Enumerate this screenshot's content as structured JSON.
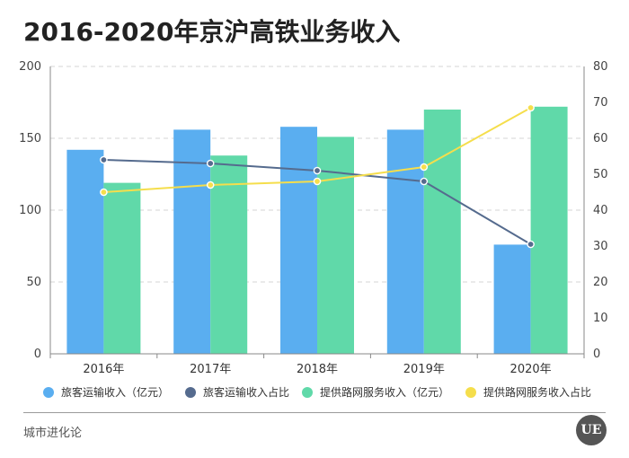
{
  "title": "2016-2020年京沪高铁业务收入",
  "source": "城市进化论",
  "logo_text": "UE",
  "colors": {
    "passenger_revenue": "#5aaef0",
    "passenger_share": "#556b8e",
    "network_revenue": "#60d9a9",
    "network_share": "#f5de4c"
  },
  "chart_data": {
    "type": "bar",
    "categories": [
      "2016年",
      "2017年",
      "2018年",
      "2019年",
      "2020年"
    ],
    "series": [
      {
        "name": "旅客运输收入（亿元）",
        "kind": "bar",
        "axis": "left",
        "values": [
          142,
          156,
          158,
          156,
          76
        ]
      },
      {
        "name": "旅客运输收入占比",
        "kind": "line",
        "axis": "right",
        "values": [
          54,
          53,
          51,
          48,
          30.5
        ]
      },
      {
        "name": "提供路网服务收入（亿元）",
        "kind": "bar",
        "axis": "left",
        "values": [
          119,
          138,
          151,
          170,
          172
        ]
      },
      {
        "name": "提供路网服务收入占比",
        "kind": "line",
        "axis": "right",
        "values": [
          45,
          47,
          48,
          52,
          68.5
        ]
      }
    ],
    "y_left": {
      "min": 0,
      "max": 200,
      "ticks": [
        "0",
        "50",
        "100",
        "150",
        "200"
      ]
    },
    "y_right": {
      "min": 0,
      "max": 80,
      "ticks": [
        "0",
        "10",
        "20",
        "30",
        "40",
        "50",
        "60",
        "70",
        "80"
      ]
    },
    "legend_position": "bottom",
    "grid": true
  }
}
